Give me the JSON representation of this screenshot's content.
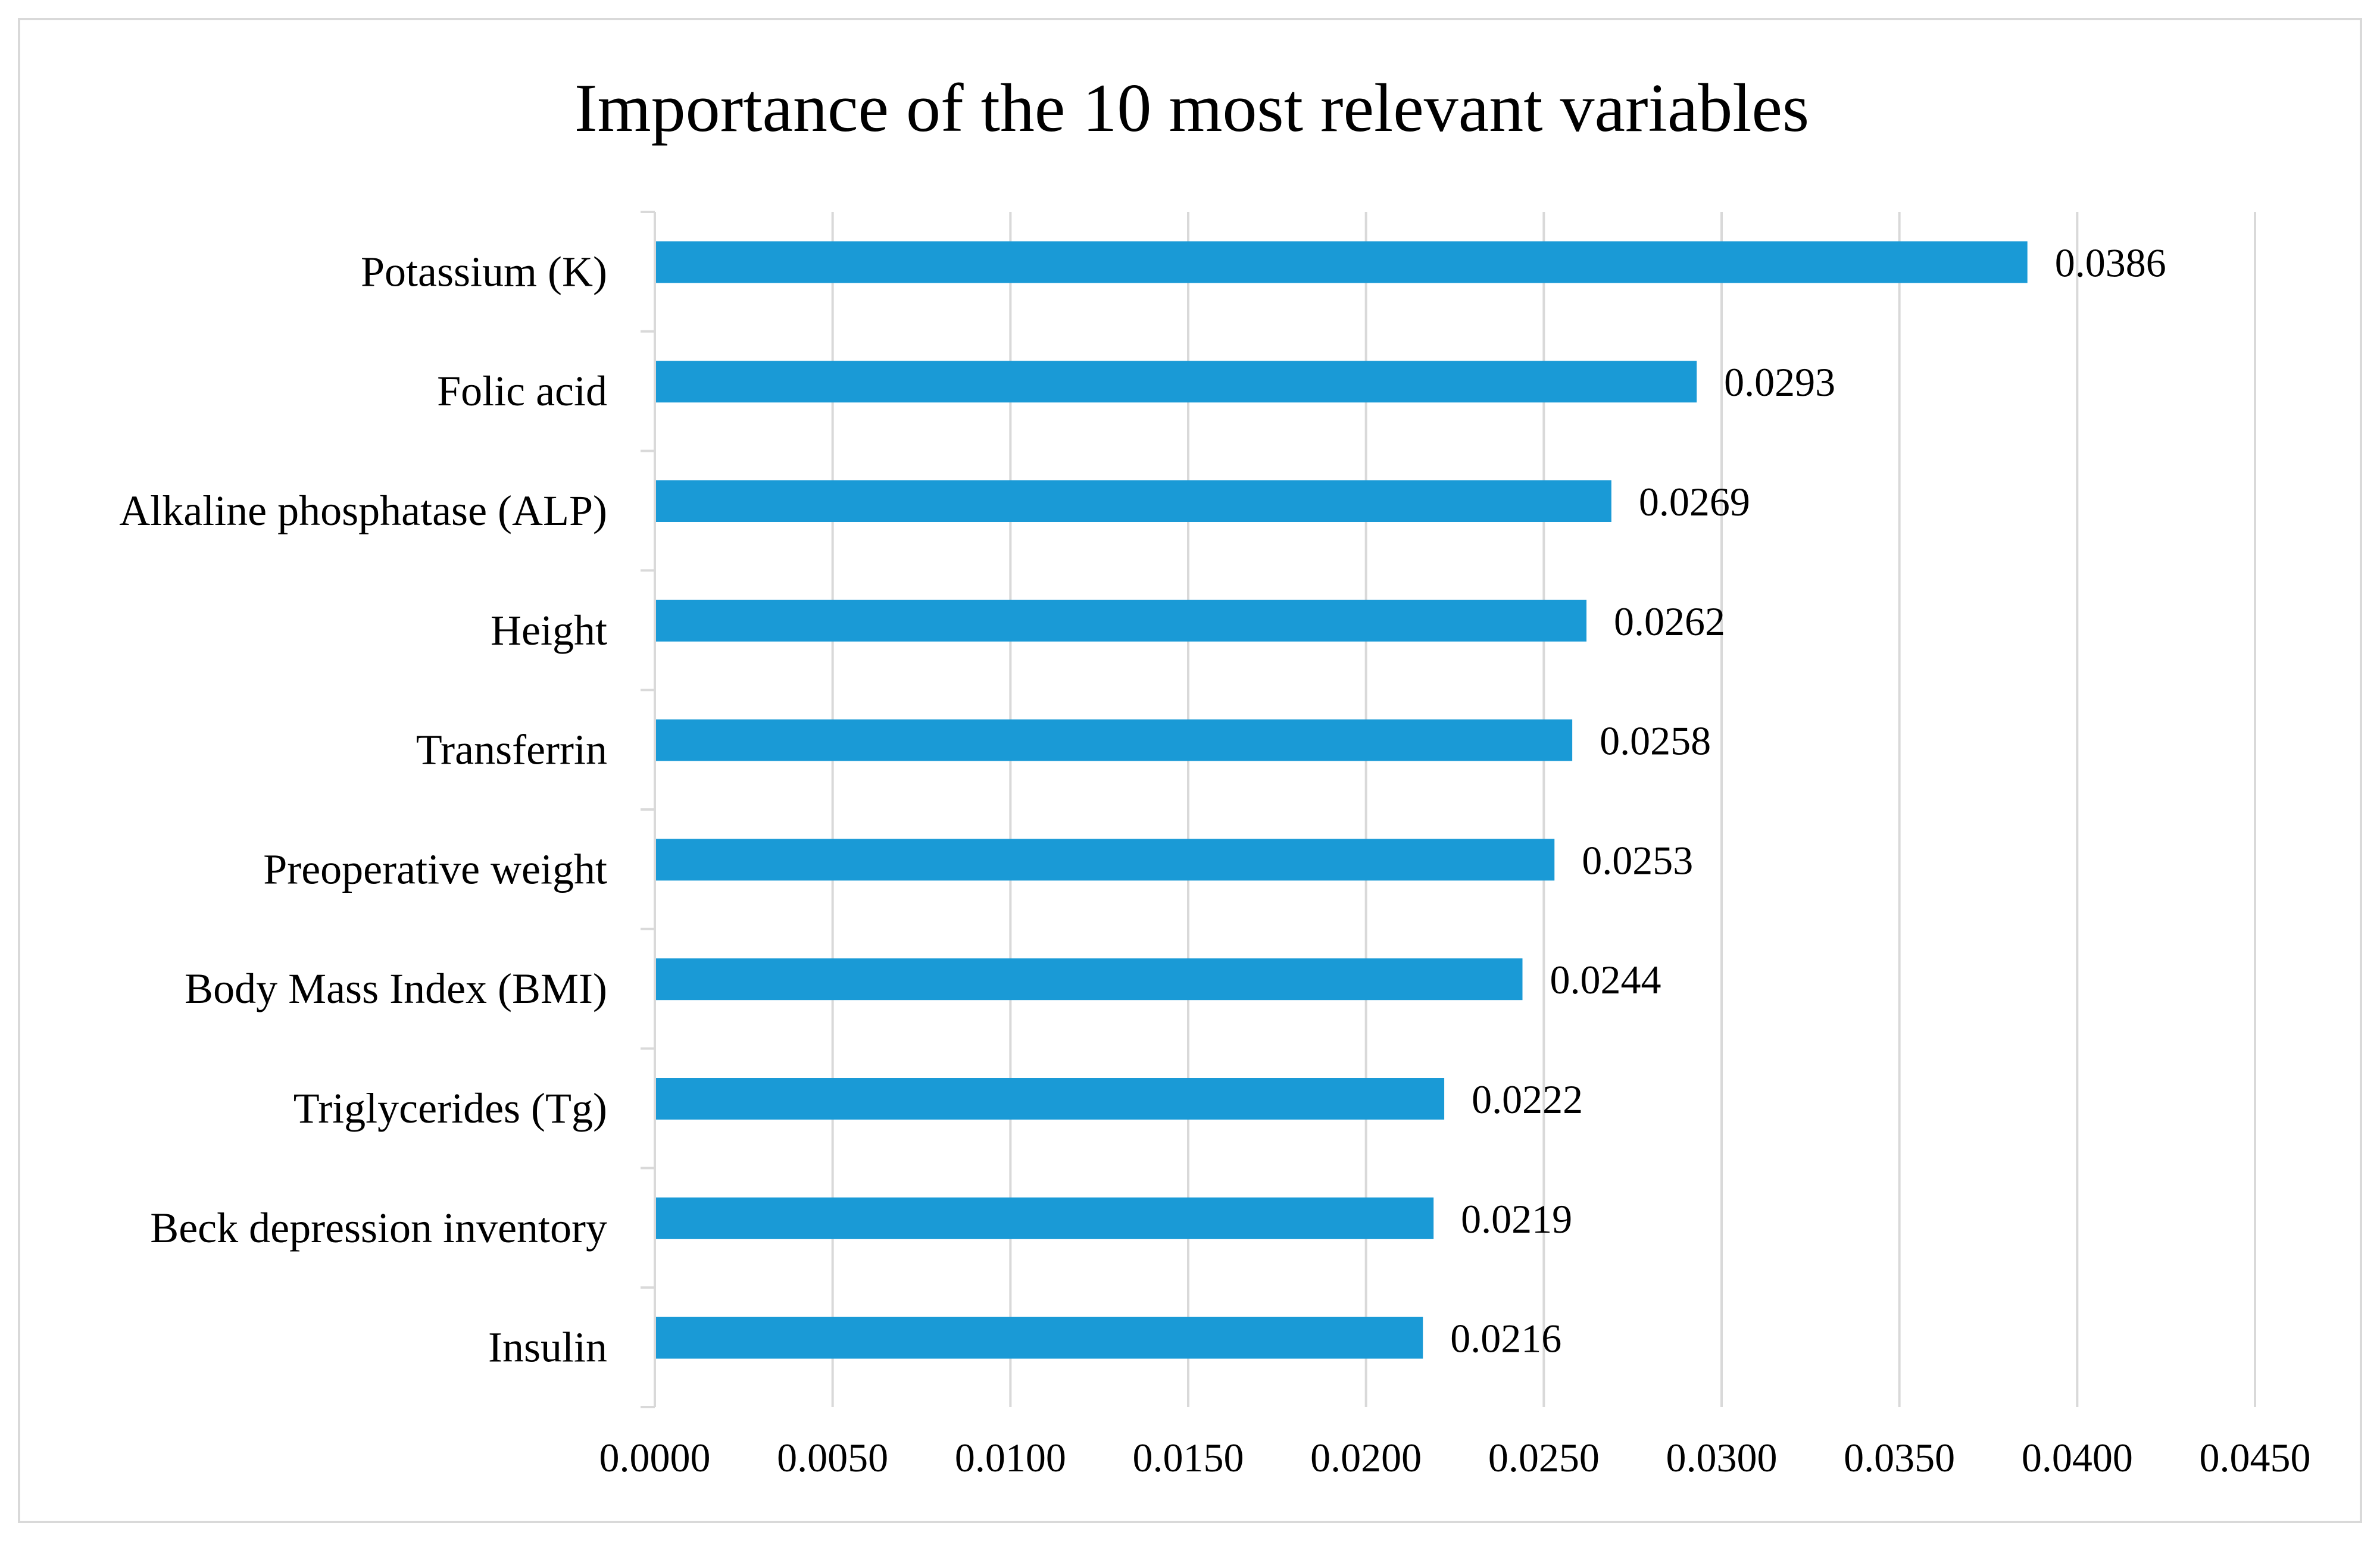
{
  "chart_data": {
    "type": "bar",
    "orientation": "horizontal",
    "title": "Importance of the 10 most relevant variables",
    "xlabel": "",
    "ylabel": "",
    "categories": [
      "Potassium (K)",
      "Folic acid",
      "Alkaline phosphatase (ALP)",
      "Height",
      "Transferrin",
      "Preoperative weight",
      "Body Mass Index (BMI)",
      "Triglycerides (Tg)",
      "Beck depression inventory",
      "Insulin"
    ],
    "values": [
      0.0386,
      0.0293,
      0.0269,
      0.0262,
      0.0258,
      0.0253,
      0.0244,
      0.0222,
      0.0219,
      0.0216
    ],
    "value_labels": [
      "0.0386",
      "0.0293",
      "0.0269",
      "0.0262",
      "0.0258",
      "0.0253",
      "0.0244",
      "0.0222",
      "0.0219",
      "0.0216"
    ],
    "xlim": [
      0,
      0.045
    ],
    "x_ticks": [
      0,
      0.005,
      0.01,
      0.015,
      0.02,
      0.025,
      0.03,
      0.035,
      0.04,
      0.045
    ],
    "x_tick_labels": [
      "0.0000",
      "0.0050",
      "0.0100",
      "0.0150",
      "0.0200",
      "0.0250",
      "0.0300",
      "0.0350",
      "0.0400",
      "0.0450"
    ],
    "grid": true,
    "legend": "none",
    "colors": {
      "bar": "#1a9ad6",
      "grid": "#d9d9d9",
      "axis": "#d9d9d9",
      "text": "#000000"
    }
  }
}
